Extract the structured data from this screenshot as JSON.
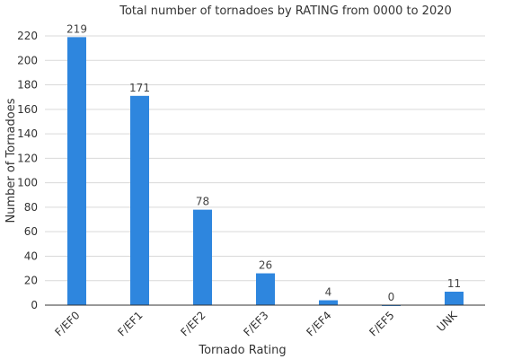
{
  "chart_data": {
    "type": "bar",
    "title": "Total number of tornadoes by RATING from 0000 to 2020",
    "xlabel": "Tornado Rating",
    "ylabel": "Number of Tornadoes",
    "categories": [
      "F/EF0",
      "F/EF1",
      "F/EF2",
      "F/EF3",
      "F/EF4",
      "F/EF5",
      "UNK"
    ],
    "values": [
      219,
      171,
      78,
      26,
      4,
      0,
      11
    ],
    "ylim": [
      0,
      220
    ],
    "yticks": [
      0,
      20,
      40,
      60,
      80,
      100,
      120,
      140,
      160,
      180,
      200,
      220
    ],
    "grid": true,
    "legend": "none",
    "bar_color": "#2e86de"
  }
}
